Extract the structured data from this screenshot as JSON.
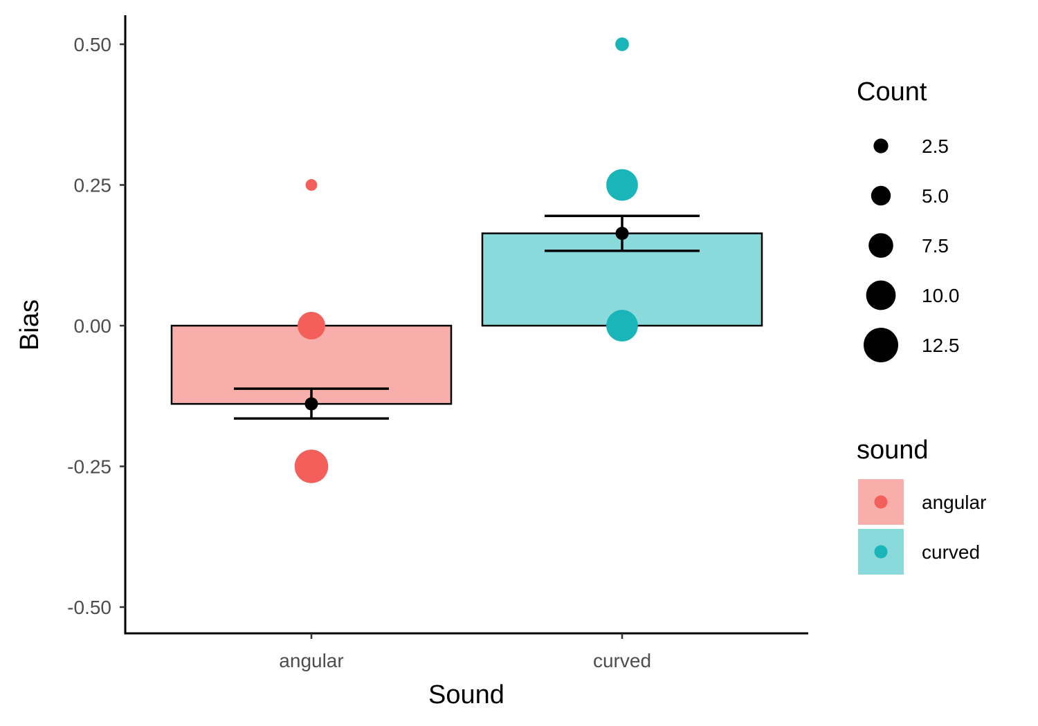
{
  "chart_data": {
    "type": "bar",
    "title": "",
    "xlabel": "Sound",
    "ylabel": "Bias",
    "categories": [
      "angular",
      "curved"
    ],
    "ylim": [
      -0.55,
      0.55
    ],
    "y_ticks": [
      -0.5,
      -0.25,
      0,
      0.25,
      0.5
    ],
    "y_tick_labels": [
      "-0.50",
      "-0.25",
      "0.00",
      "0.25",
      "0.50"
    ],
    "grid": false,
    "bars": [
      {
        "category": "angular",
        "value": -0.139,
        "se_low": -0.165,
        "se_high": -0.112,
        "fill": "#f8aeab"
      },
      {
        "category": "curved",
        "value": 0.164,
        "se_low": 0.133,
        "se_high": 0.195,
        "fill": "#8bdadb"
      }
    ],
    "points": [
      {
        "category": "angular",
        "y": 0.25,
        "count": 1
      },
      {
        "category": "angular",
        "y": 0.0,
        "count": 9
      },
      {
        "category": "angular",
        "y": -0.25,
        "count": 12
      },
      {
        "category": "curved",
        "y": 0.5,
        "count": 2
      },
      {
        "category": "curved",
        "y": 0.25,
        "count": 11
      },
      {
        "category": "curved",
        "y": 0.0,
        "count": 11
      }
    ],
    "colors": {
      "angular": "#f3605c",
      "curved": "#1ab5b8",
      "mean_point": "#000000"
    },
    "legends": {
      "placement": "right",
      "size_legend": {
        "title": "Count",
        "breaks": [
          2.5,
          5.0,
          7.5,
          10.0,
          12.5
        ],
        "labels": [
          "2.5",
          "5.0",
          "7.5",
          "10.0",
          "12.5"
        ]
      },
      "fill_legend": {
        "title": "sound",
        "labels": [
          "angular",
          "curved"
        ]
      }
    }
  }
}
